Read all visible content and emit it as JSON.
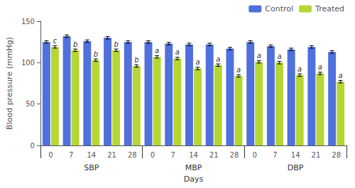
{
  "chart_data": {
    "type": "bar",
    "ylabel": "Blood pressure (mmHg)",
    "xlabel": "Days",
    "groups": [
      "SBP",
      "MBP",
      "DBP"
    ],
    "categories": [
      "0",
      "7",
      "14",
      "21",
      "28",
      "0",
      "7",
      "14",
      "21",
      "28",
      "0",
      "7",
      "14",
      "21",
      "28"
    ],
    "series": [
      {
        "name": "Control",
        "values": [
          125,
          132,
          126,
          130,
          125,
          125,
          123,
          122,
          122,
          117,
          125,
          120,
          116,
          119,
          113
        ],
        "errors": [
          1.5,
          1.5,
          1.5,
          1.5,
          1.5,
          1.5,
          1.5,
          1.5,
          1.5,
          1.5,
          1.5,
          1.5,
          1.5,
          1.5,
          1.5
        ]
      },
      {
        "name": "Treated",
        "values": [
          119,
          115,
          103,
          115,
          96,
          107,
          105,
          93,
          97,
          84,
          101,
          100,
          85,
          87,
          77
        ],
        "errors": [
          1.5,
          1.5,
          1.5,
          1.5,
          1.5,
          1.5,
          1.5,
          1.5,
          1.5,
          1.5,
          1.5,
          1.5,
          1.5,
          1.5,
          1.5
        ],
        "significance": [
          "c",
          "b",
          "b",
          "b",
          "b",
          "a",
          "a",
          "a",
          "a",
          "a",
          "a",
          "a",
          "a",
          "a",
          "a"
        ]
      }
    ],
    "ylim": [
      0,
      150
    ],
    "yticks": [
      0,
      50,
      100,
      150
    ],
    "grid": false,
    "legend": "upper right"
  }
}
